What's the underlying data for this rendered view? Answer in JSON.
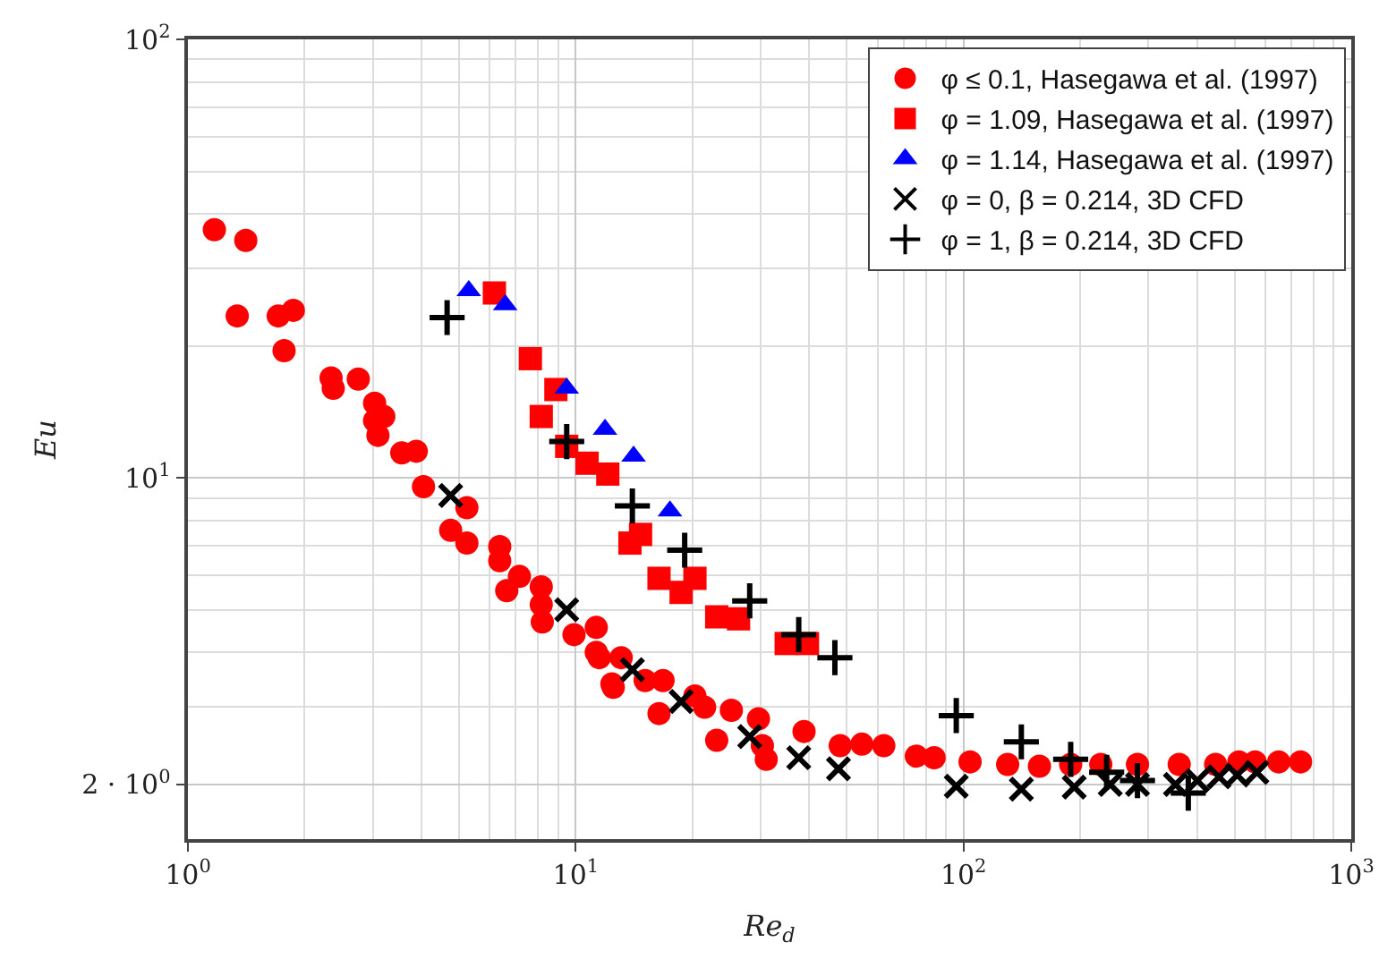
{
  "chart_data": {
    "type": "scatter",
    "xlabel": "Re$_{d}$",
    "ylabel": "Eu",
    "log": "xy",
    "grid": true,
    "legend": "top right",
    "xlim": [
      1,
      1000
    ],
    "ylim": [
      1.5,
      100
    ],
    "xticks": [
      {
        "value": 1,
        "label": "10$^{0}$"
      },
      {
        "value": 10,
        "label": "10$^{1}$"
      },
      {
        "value": 100,
        "label": "10$^{2}$"
      },
      {
        "value": 1000,
        "label": "10$^{3}$"
      }
    ],
    "yticks": [
      {
        "value": 2,
        "label": "2 · 10$^{0}$"
      },
      {
        "value": 10,
        "label": "10$^{1}$"
      },
      {
        "value": 100,
        "label": "10$^{2}$"
      }
    ],
    "series": [
      {
        "name": "φ ≤ 0.1, Hasegawa et al. (1997)",
        "color": "#ff0000",
        "marker": "circle",
        "x": [
          1.17,
          1.41,
          1.34,
          1.71,
          1.87,
          1.77,
          2.34,
          2.37,
          2.75,
          3.03,
          3.2,
          3.03,
          3.09,
          3.56,
          3.88,
          4.05,
          5.24,
          4.76,
          5.24,
          6.37,
          6.37,
          7.16,
          6.64,
          8.15,
          8.15,
          8.2,
          9.9,
          11.3,
          11.3,
          12.4,
          11.5,
          12.5,
          13.1,
          15.1,
          16.8,
          16.4,
          20.3,
          21.5,
          23.1,
          25.2,
          29.6,
          30.3,
          31.0,
          38.8,
          48.1,
          54.7,
          62.3,
          75.6,
          84,
          104,
          130,
          157,
          189,
          226,
          281,
          360,
          447,
          513,
          565,
          650,
          740
        ],
        "values": [
          36.8,
          34.8,
          23.4,
          23.4,
          24.1,
          19.5,
          16.9,
          16.0,
          16.8,
          14.8,
          13.8,
          13.5,
          12.5,
          11.4,
          11.5,
          9.55,
          8.55,
          7.59,
          7.1,
          6.97,
          6.47,
          5.96,
          5.53,
          5.64,
          5.14,
          4.69,
          4.39,
          4.56,
          4.0,
          3.39,
          3.89,
          3.33,
          3.89,
          3.45,
          3.45,
          2.9,
          3.18,
          3.0,
          2.52,
          2.95,
          2.82,
          2.45,
          2.28,
          2.64,
          2.45,
          2.47,
          2.45,
          2.32,
          2.3,
          2.25,
          2.22,
          2.2,
          2.22,
          2.22,
          2.22,
          2.22,
          2.22,
          2.25,
          2.25,
          2.25,
          2.25
        ]
      },
      {
        "name": "φ = 1.09, Hasegawa et al. (1997)",
        "color": "#ff0000",
        "marker": "square",
        "x": [
          6.17,
          7.64,
          8.89,
          8.15,
          9.48,
          10.7,
          12.1,
          13.8,
          14.7,
          16.4,
          18.7,
          20.3,
          23.1,
          26.3,
          34.9,
          39.6
        ],
        "values": [
          26.4,
          18.7,
          15.9,
          13.8,
          11.8,
          10.8,
          10.2,
          7.1,
          7.43,
          5.9,
          5.48,
          5.9,
          4.82,
          4.77,
          4.19,
          4.19
        ]
      },
      {
        "name": "φ = 1.14, Hasegawa et al. (1997)",
        "color": "#0000ff",
        "marker": "triangle",
        "x": [
          5.3,
          6.58,
          9.48,
          11.9,
          14.1,
          17.5
        ],
        "values": [
          26.7,
          24.8,
          16.0,
          12.9,
          11.2,
          8.4
        ]
      },
      {
        "name": "φ = 0, β = 0.214, 3D CFD",
        "color": "#000000",
        "marker": "x",
        "x": [
          4.76,
          9.48,
          14.0,
          18.7,
          28.1,
          37.6,
          47.6,
          95.8,
          141,
          193,
          239,
          281,
          313,
          352,
          401,
          456,
          508,
          571
        ],
        "values": [
          9.12,
          5.0,
          3.65,
          3.09,
          2.57,
          2.3,
          2.17,
          1.98,
          1.95,
          1.97,
          2.0,
          2.0,
          null,
          2.0,
          2.04,
          2.08,
          2.1,
          2.13
        ]
      },
      {
        "name": "φ = 1, β = 0.214, 3D CFD",
        "color": "#000000",
        "marker": "cross",
        "x": [
          4.66,
          9.48,
          14.0,
          19.1,
          28.1,
          37.6,
          46.6,
          95.8,
          141,
          189,
          234,
          281,
          330,
          380
        ],
        "values": [
          23.2,
          12.1,
          8.63,
          6.84,
          5.24,
          4.39,
          3.89,
          2.87,
          2.5,
          2.28,
          2.13,
          2.04,
          null,
          1.91
        ]
      }
    ]
  }
}
